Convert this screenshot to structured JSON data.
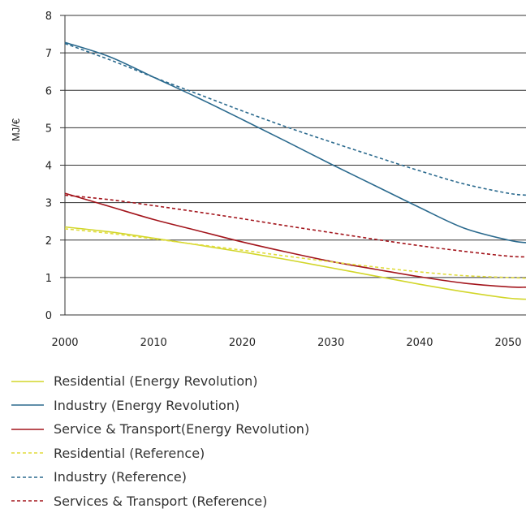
{
  "chart_data": {
    "type": "line",
    "title": "",
    "xlabel": "",
    "ylabel": "MJ/€",
    "xlim": [
      2000,
      2052
    ],
    "ylim": [
      0,
      8
    ],
    "grid": true,
    "legend_position": "bottom",
    "yticks": [
      "0",
      "1",
      "2",
      "3",
      "4",
      "5",
      "6",
      "7",
      "8"
    ],
    "xticks": [
      "2000",
      "2010",
      "2020",
      "2030",
      "2040",
      "2050"
    ],
    "series": [
      {
        "name": "Residential (Energy Revolution)",
        "color": "#d2d62a",
        "dash": "solid",
        "x": [
          2000,
          2005,
          2010,
          2015,
          2020,
          2025,
          2030,
          2035,
          2040,
          2045,
          2050,
          2052
        ],
        "y": [
          2.35,
          2.22,
          2.05,
          1.87,
          1.68,
          1.48,
          1.26,
          1.04,
          0.82,
          0.62,
          0.45,
          0.42
        ]
      },
      {
        "name": "Industry (Energy Revolution)",
        "color": "#2b6a8e",
        "dash": "solid",
        "x": [
          2000,
          2005,
          2010,
          2015,
          2020,
          2025,
          2030,
          2035,
          2040,
          2045,
          2050,
          2052
        ],
        "y": [
          7.28,
          6.9,
          6.35,
          5.8,
          5.22,
          4.63,
          4.03,
          3.45,
          2.87,
          2.32,
          2.0,
          1.93
        ]
      },
      {
        "name": "Service & Transport(Energy Revolution)",
        "color": "#a3151c",
        "dash": "solid",
        "x": [
          2000,
          2005,
          2010,
          2015,
          2020,
          2025,
          2030,
          2035,
          2040,
          2045,
          2050,
          2052
        ],
        "y": [
          3.25,
          2.9,
          2.55,
          2.25,
          1.95,
          1.68,
          1.43,
          1.22,
          1.02,
          0.85,
          0.75,
          0.74
        ]
      },
      {
        "name": "Residential (Reference)",
        "color": "#e0dc3c",
        "dash": "dashed",
        "x": [
          2000,
          2005,
          2010,
          2015,
          2020,
          2025,
          2030,
          2035,
          2040,
          2045,
          2050,
          2052
        ],
        "y": [
          2.3,
          2.18,
          2.03,
          1.88,
          1.73,
          1.57,
          1.42,
          1.28,
          1.15,
          1.05,
          1.0,
          0.98
        ]
      },
      {
        "name": "Industry (Reference)",
        "color": "#2b6a8e",
        "dash": "dashed",
        "x": [
          2000,
          2005,
          2010,
          2015,
          2020,
          2025,
          2030,
          2035,
          2040,
          2045,
          2050,
          2052
        ],
        "y": [
          7.25,
          6.82,
          6.35,
          5.9,
          5.45,
          5.02,
          4.62,
          4.23,
          3.85,
          3.5,
          3.25,
          3.2
        ]
      },
      {
        "name": "Services & Transport (Reference)",
        "color": "#a3151c",
        "dash": "dashed",
        "x": [
          2000,
          2005,
          2010,
          2015,
          2020,
          2025,
          2030,
          2035,
          2040,
          2045,
          2050,
          2052
        ],
        "y": [
          3.2,
          3.08,
          2.92,
          2.75,
          2.57,
          2.38,
          2.2,
          2.02,
          1.85,
          1.7,
          1.57,
          1.55
        ]
      }
    ]
  }
}
